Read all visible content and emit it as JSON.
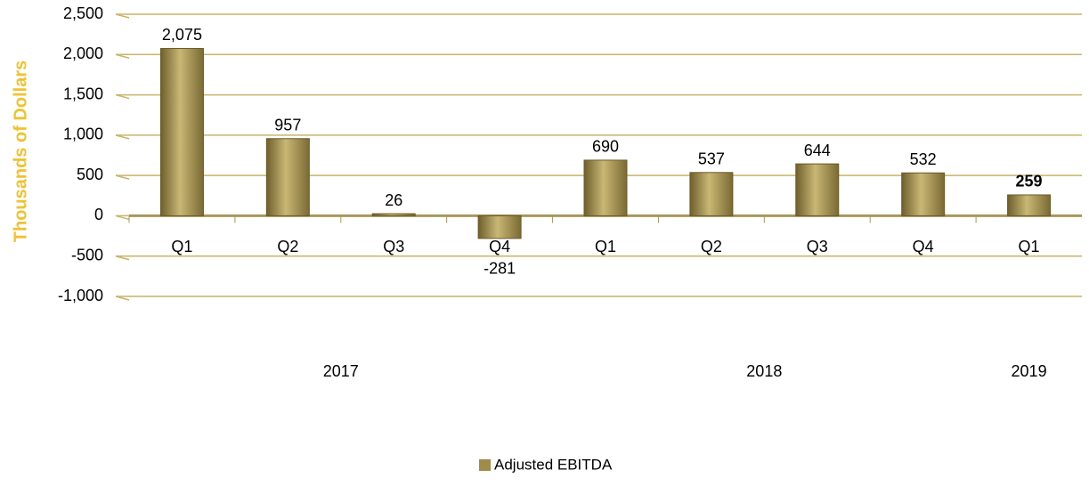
{
  "chart_data": {
    "type": "bar",
    "y_axis_label": "Thousands of Dollars",
    "categories": [
      "Q1",
      "Q2",
      "Q3",
      "Q4",
      "Q1",
      "Q2",
      "Q3",
      "Q4",
      "Q1"
    ],
    "year_groups": [
      {
        "name": "2017",
        "categories": [
          0,
          3
        ]
      },
      {
        "name": "2018",
        "categories": [
          4,
          7
        ]
      },
      {
        "name": "2019",
        "categories": [
          8,
          8
        ]
      }
    ],
    "series": [
      {
        "name": "Adjusted EBITDA",
        "color": "#a08c48",
        "values": [
          2075,
          957,
          26,
          -281,
          690,
          537,
          644,
          532,
          259
        ],
        "value_labels": [
          "2,075",
          "957",
          "26",
          "-281",
          "690",
          "537",
          "644",
          "532",
          "259"
        ]
      }
    ],
    "ylim": [
      -1000,
      2500
    ],
    "yticks": [
      {
        "value": -1000,
        "label": "-1,000"
      },
      -500,
      0,
      500,
      {
        "value": 1000,
        "label": "1,000"
      },
      {
        "value": 1500,
        "label": "1,500"
      },
      {
        "value": 2000,
        "label": "2,000"
      },
      {
        "value": 2500,
        "label": "2,500"
      }
    ],
    "grid": true,
    "legend": "bottom"
  }
}
